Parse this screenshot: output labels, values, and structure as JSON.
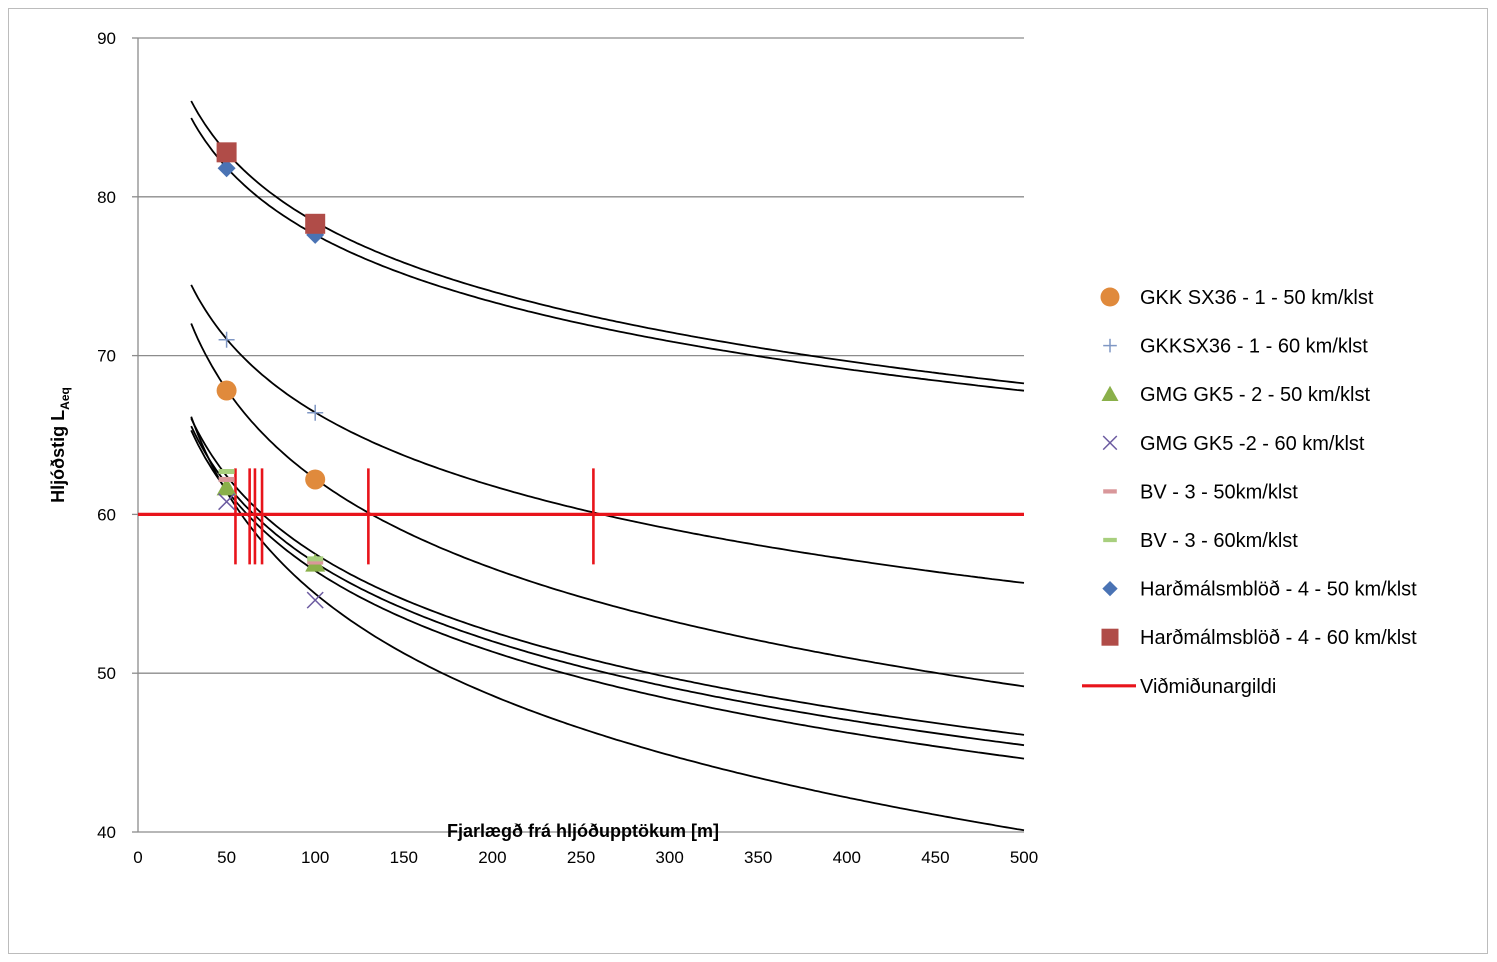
{
  "chart_data": {
    "type": "scatter",
    "xlabel": "Fjarlægð frá hljóðupptökum  [m]",
    "ylabel_main": "Hljóðstig  L",
    "ylabel_sub": "Aeq",
    "xlim": [
      0,
      500
    ],
    "ylim": [
      40,
      90
    ],
    "xticks": [
      "0",
      "50",
      "100",
      "150",
      "200",
      "250",
      "300",
      "350",
      "400",
      "450",
      "500"
    ],
    "yticks": [
      "40",
      "50",
      "60",
      "70",
      "80",
      "90"
    ],
    "grid": "horizontal",
    "legend_position": "right",
    "series": [
      {
        "name": "GKK SX36 - 1 - 50 km/klst",
        "marker": "circle",
        "color": "#e08a3c",
        "points": [
          [
            50,
            67.8
          ],
          [
            100,
            62.2
          ]
        ]
      },
      {
        "name": "GKKSX36 - 1 - 60 km/klst",
        "marker": "plus",
        "color": "#7f97c4",
        "points": [
          [
            50,
            71.0
          ],
          [
            100,
            66.4
          ]
        ]
      },
      {
        "name": "GMG GK5 - 2 -  50 km/klst",
        "marker": "triangle",
        "color": "#8ab04a",
        "points": [
          [
            50,
            61.7
          ],
          [
            100,
            56.9
          ]
        ]
      },
      {
        "name": "GMG GK5 -2 - 60 km/klst",
        "marker": "x",
        "color": "#6b5aa0",
        "points": [
          [
            50,
            60.8
          ],
          [
            100,
            54.6
          ]
        ]
      },
      {
        "name": "BV - 3 - 50km/klst",
        "marker": "dash",
        "color": "#d9979a",
        "points": [
          [
            50,
            62.2
          ],
          [
            100,
            57.0
          ]
        ]
      },
      {
        "name": "BV - 3 - 60km/klst",
        "marker": "dash",
        "color": "#a8cf7e",
        "points": [
          [
            50,
            62.7
          ],
          [
            100,
            57.2
          ]
        ]
      },
      {
        "name": "Harðmálsmblöð - 4 - 50 km/klst",
        "marker": "diamond",
        "color": "#4a73b4",
        "points": [
          [
            50,
            81.8
          ],
          [
            100,
            77.6
          ]
        ]
      },
      {
        "name": "Harðmálmsblöð - 4 - 60 km/klst",
        "marker": "square",
        "color": "#b04c48",
        "points": [
          [
            50,
            82.8
          ],
          [
            100,
            78.3
          ]
        ]
      },
      {
        "name": "Viðmiðunargildi",
        "marker": "line",
        "color": "#e8141b",
        "points": [
          [
            0,
            60
          ],
          [
            500,
            60
          ]
        ]
      }
    ],
    "trend_lines": [
      {
        "color": "#000000",
        "points": [
          [
            30,
            86.1
          ],
          [
            50,
            82.8
          ],
          [
            100,
            78.3
          ],
          [
            500,
            68.3
          ]
        ]
      },
      {
        "color": "#000000",
        "points": [
          [
            30,
            85.0
          ],
          [
            50,
            81.8
          ],
          [
            100,
            77.6
          ],
          [
            500,
            67.8
          ]
        ]
      },
      {
        "color": "#000000",
        "points": [
          [
            30,
            74.5
          ],
          [
            50,
            71.0
          ],
          [
            100,
            66.4
          ],
          [
            500,
            55.7
          ]
        ]
      },
      {
        "color": "#000000",
        "points": [
          [
            30,
            72.1
          ],
          [
            50,
            67.8
          ],
          [
            100,
            62.2
          ],
          [
            500,
            49.2
          ]
        ]
      },
      {
        "color": "#000000",
        "points": [
          [
            30,
            66.0
          ],
          [
            50,
            62.7
          ],
          [
            100,
            57.2
          ],
          [
            500,
            46.2
          ]
        ]
      },
      {
        "color": "#000000",
        "points": [
          [
            30,
            65.3
          ],
          [
            50,
            62.2
          ],
          [
            100,
            57.0
          ],
          [
            500,
            45.4
          ]
        ]
      },
      {
        "color": "#000000",
        "points": [
          [
            30,
            64.9
          ],
          [
            50,
            61.7
          ],
          [
            100,
            56.9
          ],
          [
            500,
            44.4
          ]
        ]
      },
      {
        "color": "#000000",
        "points": [
          [
            30,
            66.9
          ],
          [
            50,
            60.8
          ],
          [
            100,
            54.6
          ],
          [
            500,
            40.4
          ]
        ]
      }
    ],
    "intersections_x": [
      55,
      63,
      66,
      70,
      130,
      257
    ],
    "intersection_y": 60
  }
}
